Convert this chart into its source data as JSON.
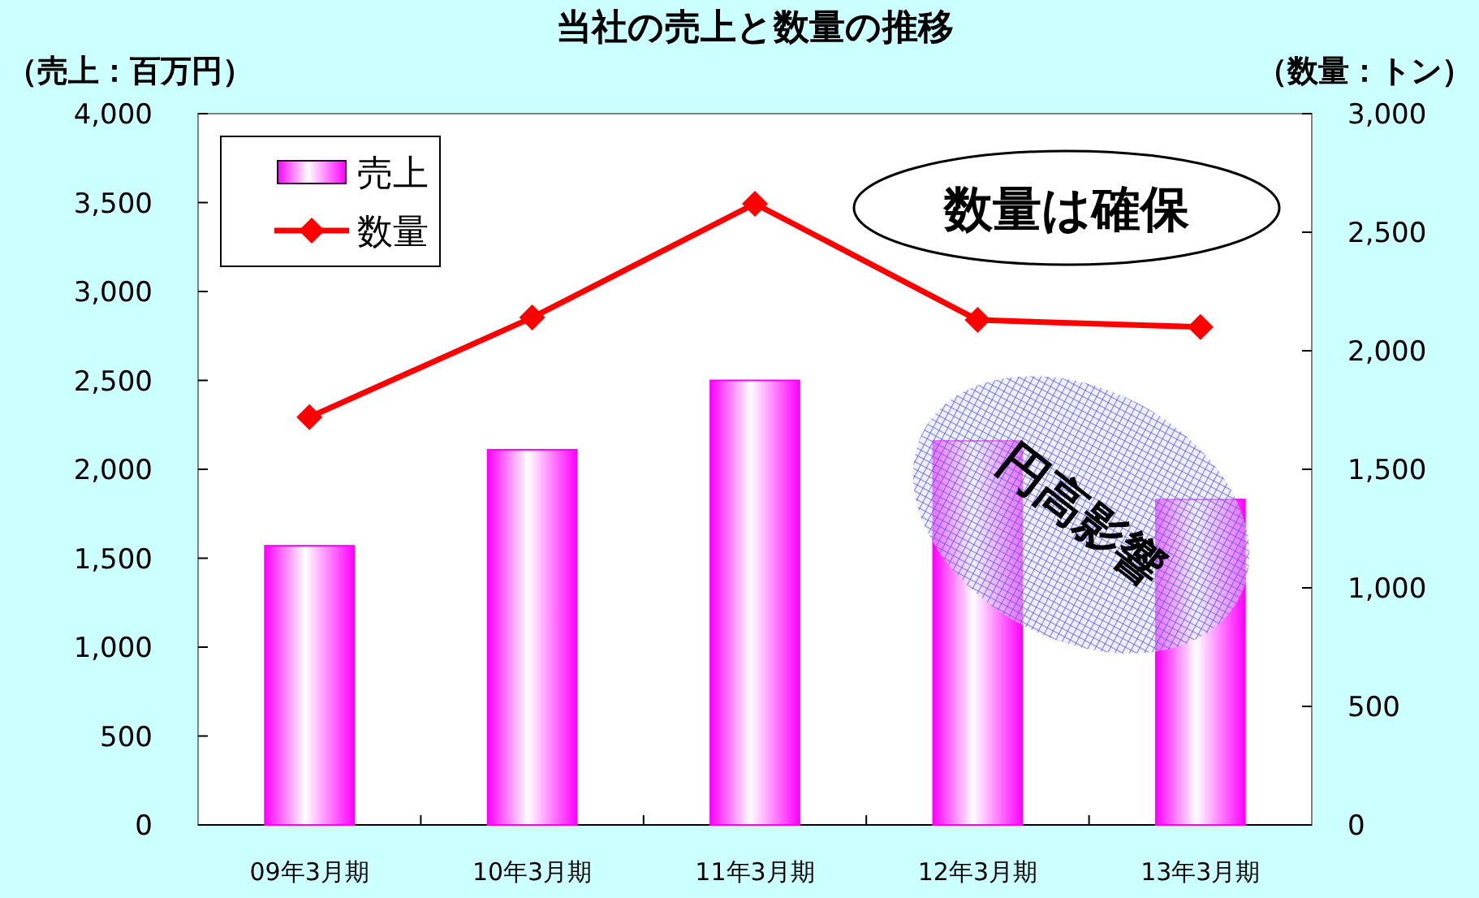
{
  "chart_data": {
    "type": "bar",
    "title": "当社の売上と数量の推移",
    "ylabel": "（売上：百万円）",
    "y2label": "（数量：トン）",
    "categories": [
      "09年3月期",
      "10年3月期",
      "11年3月期",
      "12年3月期",
      "13年3月期"
    ],
    "series": [
      {
        "name": "売上",
        "color": "#ff00ff",
        "values": [
          1570,
          2110,
          2500,
          2160,
          1830
        ]
      },
      {
        "name": "数量",
        "type": "line",
        "axis": "y2",
        "color": "#ff0000",
        "marker": "diamond",
        "values": [
          1720,
          2140,
          2620,
          2130,
          2100
        ]
      }
    ],
    "ylim": [
      0,
      4000
    ],
    "yticks": [
      {
        "value": 0,
        "label": "0"
      },
      {
        "value": 500,
        "label": "500"
      },
      {
        "value": 1000,
        "label": "1,000"
      },
      {
        "value": 1500,
        "label": "1,500"
      },
      {
        "value": 2000,
        "label": "2,000"
      },
      {
        "value": 2500,
        "label": "2,500"
      },
      {
        "value": 3000,
        "label": "3,000"
      },
      {
        "value": 3500,
        "label": "3,500"
      },
      {
        "value": 4000,
        "label": "4,000"
      }
    ],
    "y2lim": [
      0,
      3000
    ],
    "y2ticks": [
      {
        "value": 0,
        "label": "0"
      },
      {
        "value": 500,
        "label": "500"
      },
      {
        "value": 1000,
        "label": "1,000"
      },
      {
        "value": 1500,
        "label": "1,500"
      },
      {
        "value": 2000,
        "label": "2,000"
      },
      {
        "value": 2500,
        "label": "2,500"
      },
      {
        "value": 3000,
        "label": "3,000"
      }
    ],
    "legend": "top left",
    "grid": false,
    "annotations": [
      "数量は確保",
      "円高影響"
    ]
  }
}
